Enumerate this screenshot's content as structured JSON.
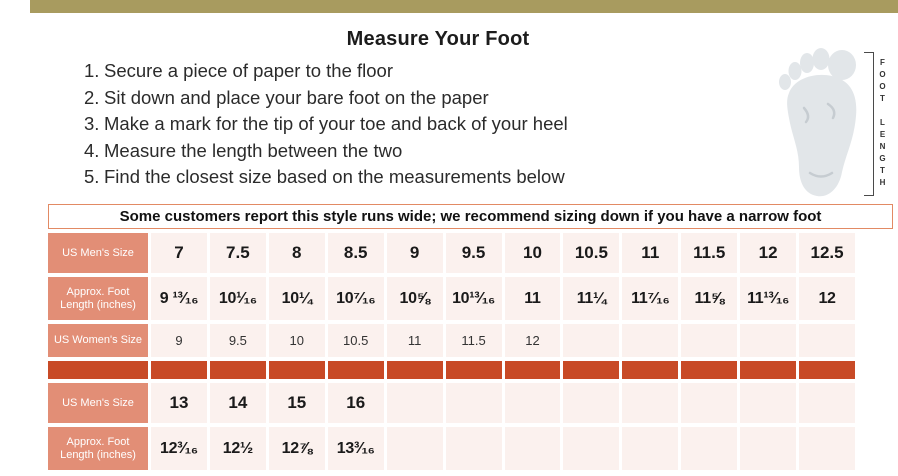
{
  "page": {
    "title": "Measure Your Foot"
  },
  "colors": {
    "top_bar": "#a89b5f",
    "label_cell_bg": "#e28e76",
    "data_cell_bg": "#fbf1ee",
    "separator_cell_bg": "#c84a26",
    "notice_border": "#e28a64",
    "foot_fill": "#e2e6e9"
  },
  "instructions": [
    {
      "num": "1.",
      "text": "Secure a piece of paper to the floor"
    },
    {
      "num": "2.",
      "text": "Sit down and place your bare foot on the paper"
    },
    {
      "num": "3.",
      "text": "Make a mark for the tip of your toe and back of your heel"
    },
    {
      "num": "4.",
      "text": "Measure the length between the two"
    },
    {
      "num": "5.",
      "text": "Find the closest size based on the measurements below"
    }
  ],
  "foot_figure": {
    "label_line1": "FOOT",
    "label_line2": "LENGTH"
  },
  "notice": {
    "text": "Some customers report this style runs wide; we recommend sizing down if you have a narrow foot"
  },
  "size_table": {
    "columns": 12,
    "rows": [
      {
        "type": "data",
        "style": "mens",
        "label_lines": [
          "US Men's Size"
        ],
        "values": [
          "7",
          "7.5",
          "8",
          "8.5",
          "9",
          "9.5",
          "10",
          "10.5",
          "11",
          "11.5",
          "12",
          "12.5"
        ]
      },
      {
        "type": "data",
        "style": "length",
        "label_lines": [
          "Approx. Foot",
          "Length (inches)"
        ],
        "values": [
          "9 ¹³⁄₁₆",
          "10¹⁄₁₆",
          "10¼",
          "10⁷⁄₁₆",
          "10⅝",
          "10¹³⁄₁₆",
          "11",
          "11¼",
          "11⁷⁄₁₆",
          "11⅝",
          "11¹³⁄₁₆",
          "12"
        ]
      },
      {
        "type": "data",
        "style": "womens",
        "label_lines": [
          "US Women's Size"
        ],
        "values": [
          "9",
          "9.5",
          "10",
          "10.5",
          "11",
          "11.5",
          "12",
          "",
          "",
          "",
          "",
          ""
        ]
      },
      {
        "type": "separator"
      },
      {
        "type": "data",
        "style": "mens",
        "label_lines": [
          "US Men's Size"
        ],
        "values": [
          "13",
          "14",
          "15",
          "16",
          "",
          "",
          "",
          "",
          "",
          "",
          "",
          ""
        ]
      },
      {
        "type": "data",
        "style": "length",
        "label_lines": [
          "Approx. Foot",
          "Length (inches)"
        ],
        "values": [
          "12³⁄₁₆",
          "12½",
          "12⅞",
          "13³⁄₁₆",
          "",
          "",
          "",
          "",
          "",
          "",
          "",
          ""
        ]
      }
    ]
  }
}
